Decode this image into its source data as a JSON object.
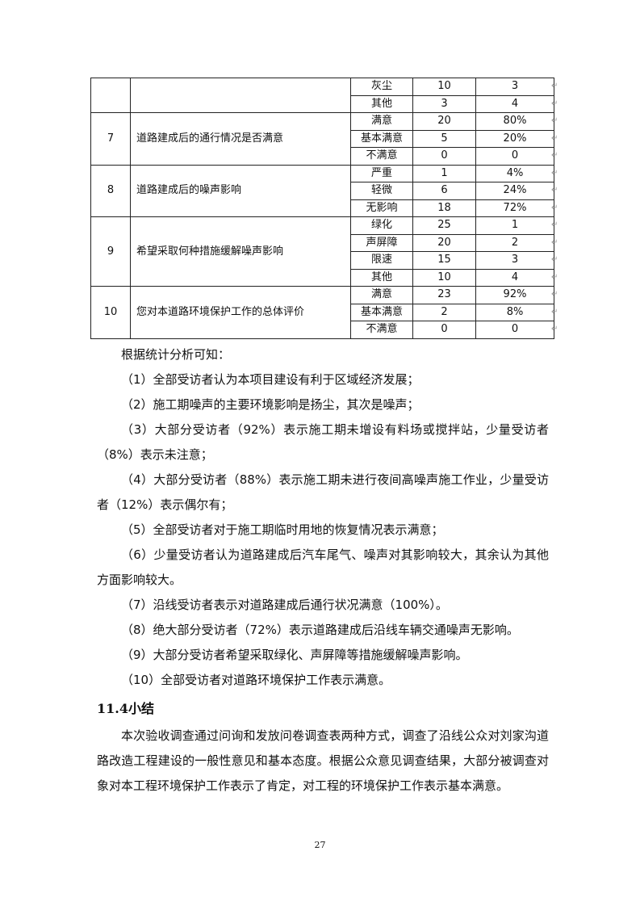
{
  "table": {
    "groups": [
      {
        "no": "",
        "question": "",
        "rows": [
          [
            "灰尘",
            "10",
            "3"
          ],
          [
            "其他",
            "3",
            "4"
          ]
        ]
      },
      {
        "no": "7",
        "question": "道路建成后的通行情况是否满意",
        "rows": [
          [
            "满意",
            "20",
            "80%"
          ],
          [
            "基本满意",
            "5",
            "20%"
          ],
          [
            "不满意",
            "0",
            "0"
          ]
        ]
      },
      {
        "no": "8",
        "question": "道路建成后的噪声影响",
        "rows": [
          [
            "严重",
            "1",
            "4%"
          ],
          [
            "轻微",
            "6",
            "24%"
          ],
          [
            "无影响",
            "18",
            "72%"
          ]
        ]
      },
      {
        "no": "9",
        "question": "希望采取何种措施缓解噪声影响",
        "rows": [
          [
            "绿化",
            "25",
            "1"
          ],
          [
            "声屏障",
            "20",
            "2"
          ],
          [
            "限速",
            "15",
            "3"
          ],
          [
            "其他",
            "10",
            "4"
          ]
        ]
      },
      {
        "no": "10",
        "question": "您对本道路环境保护工作的总体评价",
        "rows": [
          [
            "满意",
            "23",
            "92%"
          ],
          [
            "基本满意",
            "2",
            "8%"
          ],
          [
            "不满意",
            "0",
            "0"
          ]
        ]
      }
    ]
  },
  "analysis": {
    "intro": "根据统计分析可知：",
    "items": [
      "（1）全部受访者认为本项目建设有利于区域经济发展；",
      "（2）施工期噪声的主要环境影响是扬尘，其次是噪声；",
      "（3）大部分受访者（92%）表示施工期未增设有料场或搅拌站，少量受访者（8%）表示未注意；",
      "（4）大部分受访者（88%）表示施工期未进行夜间高噪声施工作业，少量受访者（12%）表示偶尔有；",
      "（5）全部受访者对于施工期临时用地的恢复情况表示满意；",
      "（6）少量受访者认为道路建成后汽车尾气、噪声对其影响较大，其余认为其他方面影响较大。",
      "（7）沿线受访者表示对道路建成后通行状况满意（100%）。",
      "（8）绝大部分受访者（72%）表示道路建成后沿线车辆交通噪声无影响。",
      "（9）大部分受访者希望采取绿化、声屏障等措施缓解噪声影响。",
      "（10）全部受访者对道路环境保护工作表示满意。"
    ]
  },
  "summary": {
    "heading": "11.4小结",
    "body": "本次验收调查通过问询和发放问卷调查表两种方式，调查了沿线公众对刘家沟道路改造工程建设的一般性意见和基本态度。根据公众意见调查结果，大部分被调查对象对本工程环境保护工作表示了肯定，对工程的环境保护工作表示基本满意。"
  },
  "page_number": "27"
}
